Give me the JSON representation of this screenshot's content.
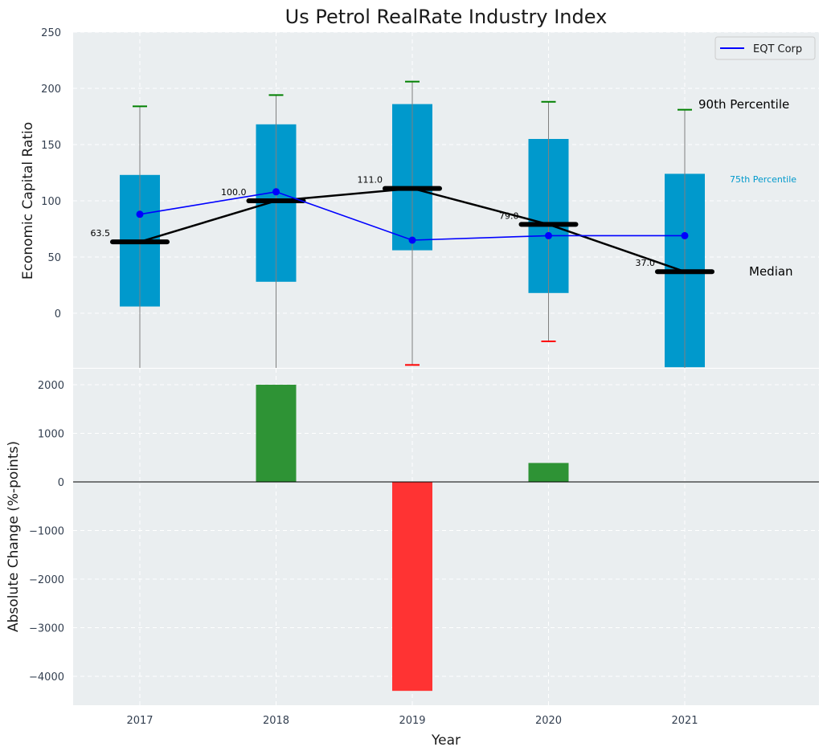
{
  "colors": {
    "panel_bg": "#eaeef0",
    "grid": "#ffffff",
    "box_fill": "#0099cc",
    "whisker_line": "#808080",
    "cap_upper": "#008000",
    "cap_lower": "#ff0000",
    "median_line": "#000000",
    "eqt_line": "#0000ff",
    "bar_positive": "#2e9335",
    "bar_negative": "#ff3333",
    "tick_text": "#333f50",
    "label_text": "#1a1a1a",
    "p75_text": "#0099cc"
  },
  "chart_data": [
    {
      "type": "box",
      "title": "Us Petrol RealRate Industry Index",
      "ylabel": "Economic Capital Ratio",
      "xlabel": "",
      "ylim": [
        -48,
        250
      ],
      "yticks": [
        0,
        50,
        100,
        150,
        200,
        250
      ],
      "categories": [
        "2017",
        "2018",
        "2019",
        "2020",
        "2021"
      ],
      "boxes": [
        {
          "year": "2017",
          "p25": 6,
          "p75": 123,
          "median": 63.5,
          "p10": null,
          "p90": 184
        },
        {
          "year": "2018",
          "p25": 28,
          "p75": 168,
          "median": 100.0,
          "p10": null,
          "p90": 194
        },
        {
          "year": "2019",
          "p25": 56,
          "p75": 186,
          "median": 111.0,
          "p10": -46,
          "p90": 206
        },
        {
          "year": "2020",
          "p25": 18,
          "p75": 155,
          "median": 79.0,
          "p10": -25,
          "p90": 188
        },
        {
          "year": "2021",
          "p25": -48,
          "p75": 124,
          "median": 37.0,
          "p10": null,
          "p90": 181
        }
      ],
      "median_labels": [
        "63.5",
        "100.0",
        "111.0",
        "79.0",
        "37.0"
      ],
      "series": [
        {
          "name": "EQT Corp",
          "values": [
            88,
            108,
            65,
            69,
            69
          ]
        }
      ],
      "legend": {
        "position": "top-right",
        "entries": [
          "EQT Corp"
        ]
      },
      "annotations": {
        "p90": "90th Percentile",
        "p75": "75th Percentile",
        "median": "Median"
      },
      "grid": true
    },
    {
      "type": "bar",
      "ylabel": "Absolute Change (%-points)",
      "xlabel": "Year",
      "ylim": [
        -4600,
        2300
      ],
      "yticks": [
        2000,
        1000,
        0,
        -1000,
        -2000,
        -3000,
        -4000
      ],
      "ytick_labels": [
        "2000",
        "1000",
        "0",
        "−1000",
        "−2000",
        "−3000",
        "−4000"
      ],
      "categories": [
        "2017",
        "2018",
        "2019",
        "2020",
        "2021"
      ],
      "values": [
        0,
        2000,
        -4300,
        390,
        0
      ],
      "grid": true
    }
  ]
}
